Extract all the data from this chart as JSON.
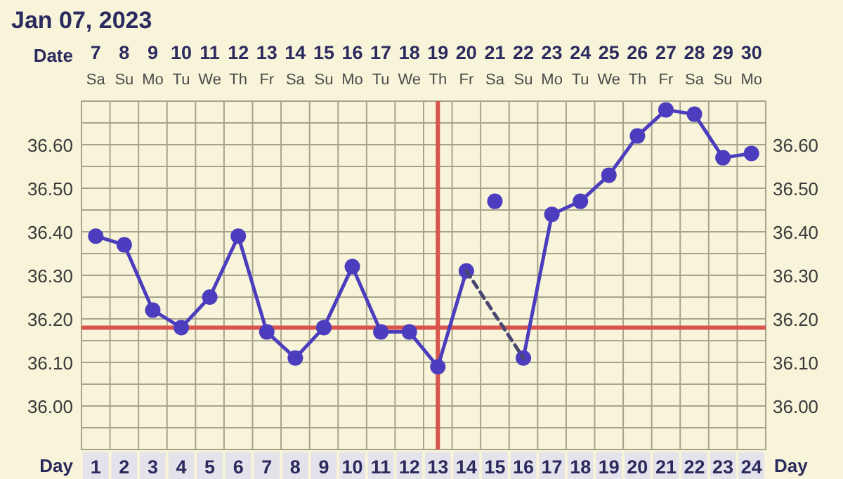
{
  "chart_data": {
    "type": "line",
    "title": "Jan 07, 2023",
    "xlabel": "Day",
    "x2label": "Date",
    "xlim": [
      0.5,
      24.5
    ],
    "xticks": [
      1,
      2,
      3,
      4,
      5,
      6,
      7,
      8,
      9,
      10,
      11,
      12,
      13,
      14,
      15,
      16,
      17,
      18,
      19,
      20,
      21,
      22,
      23,
      24
    ],
    "x2lim": [
      6.5,
      30.5
    ],
    "x2ticks": [
      7,
      8,
      9,
      10,
      11,
      12,
      13,
      14,
      15,
      16,
      17,
      18,
      19,
      20,
      21,
      22,
      23,
      24,
      25,
      26,
      27,
      28,
      29,
      30
    ],
    "annotations": [
      "Sa",
      "Su",
      "Mo",
      "Tu",
      "We",
      "Th",
      "Fr",
      "Sa",
      "Su",
      "Mo",
      "Tu",
      "We",
      "Th",
      "Fr",
      "Sa",
      "Su",
      "Mo",
      "Tu",
      "We",
      "Th",
      "Fr",
      "Sa",
      "Su",
      "Mo"
    ],
    "ylim": [
      35.9,
      36.7
    ],
    "yticks": [
      {
        "value": 35.95,
        "label": null
      },
      {
        "value": 36.0,
        "label": "36.00"
      },
      {
        "value": 36.05,
        "label": null
      },
      {
        "value": 36.1,
        "label": "36.10"
      },
      {
        "value": 36.15,
        "label": null
      },
      {
        "value": 36.2,
        "label": "36.20"
      },
      {
        "value": 36.25,
        "label": null
      },
      {
        "value": 36.3,
        "label": "36.30"
      },
      {
        "value": 36.35,
        "label": null
      },
      {
        "value": 36.4,
        "label": "36.40"
      },
      {
        "value": 36.45,
        "label": null
      },
      {
        "value": 36.5,
        "label": "36.50"
      },
      {
        "value": 36.55,
        "label": null
      },
      {
        "value": 36.6,
        "label": "36.60"
      },
      {
        "value": 36.65,
        "label": null
      }
    ],
    "y2lim": [
      35.9,
      36.7
    ],
    "y2ticks": [
      {
        "value": 36.0,
        "label": "36.00"
      },
      {
        "value": 36.1,
        "label": "36.10"
      },
      {
        "value": 36.2,
        "label": "36.20"
      },
      {
        "value": 36.3,
        "label": "36.30"
      },
      {
        "value": 36.4,
        "label": "36.40"
      },
      {
        "value": 36.5,
        "label": "36.50"
      },
      {
        "value": 36.6,
        "label": "36.60"
      }
    ],
    "grid": true,
    "ref_lines": [
      {
        "axis": "y",
        "value": 36.18,
        "color": "#d9544c"
      },
      {
        "axis": "x",
        "value": 13,
        "color": "#d9544c"
      }
    ],
    "series": [
      {
        "color": "#4b3dbd",
        "marker": "circle",
        "line_style": "solid",
        "x": [
          1,
          2,
          3,
          4,
          5,
          6,
          7,
          8,
          9,
          10,
          11,
          12,
          13,
          14,
          15,
          16,
          17,
          18,
          19,
          20,
          21,
          22,
          23,
          24
        ],
        "values": [
          36.39,
          36.37,
          36.22,
          36.18,
          36.25,
          36.39,
          36.17,
          36.11,
          36.18,
          36.32,
          36.17,
          36.17,
          36.09,
          36.31,
          null,
          36.11,
          36.44,
          36.47,
          36.53,
          36.62,
          36.68,
          36.67,
          36.57,
          36.58
        ]
      },
      {
        "type": "line",
        "color": "#4a4870",
        "marker": "none",
        "line_style": "dashed",
        "x": [
          14,
          16
        ],
        "values": [
          36.31,
          36.11
        ]
      },
      {
        "type": "scatter",
        "color": "#4b3dbd",
        "marker": "circle",
        "x": [
          15
        ],
        "values": [
          36.47
        ]
      }
    ]
  }
}
